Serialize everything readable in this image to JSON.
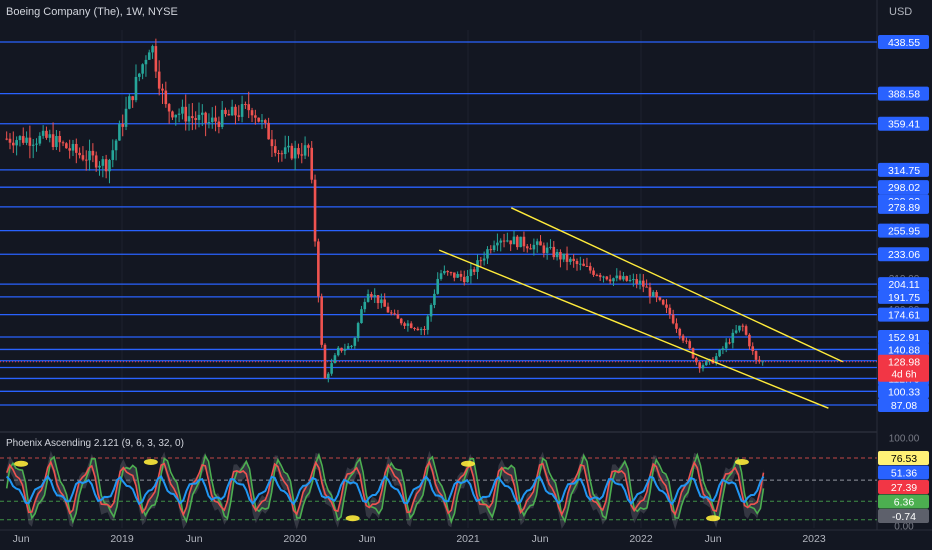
{
  "header": {
    "title": "Boeing Company (The), 1W, NYSE",
    "currency": "USD"
  },
  "oscillator": {
    "title": "Phoenix Ascending 2.121 (9, 6, 3, 32, 0)",
    "value_labels": [
      {
        "text": "76.53",
        "bg": "#fff176",
        "fg": "#000000",
        "value": 76.53
      },
      {
        "text": "51.36",
        "bg": "#2962ff",
        "fg": "#ffffff",
        "value": 51.36
      },
      {
        "text": "27.39",
        "bg": "#f23645",
        "fg": "#ffffff",
        "value": 27.39
      },
      {
        "text": "6.36",
        "bg": "#4caf50",
        "fg": "#ffffff",
        "value": 6.36
      },
      {
        "text": "-0.74",
        "bg": "#5d606b",
        "fg": "#ffffff",
        "value": -0.74
      }
    ],
    "hidden_scale_labels": [
      "100.00",
      "0.00"
    ]
  },
  "colors": {
    "background": "#131722",
    "level_line": "#2962ff",
    "level_label_bg": "#2962ff",
    "up_candle": "#26a69a",
    "down_candle": "#ef5350",
    "channel_line": "#ffeb3b",
    "last_price_label": "#f23645"
  },
  "chart_data": {
    "type": "candlestick",
    "title": "Boeing Company (The), 1W, NYSE",
    "currency": "USD",
    "x_tick_labels": [
      "Jun",
      "2019",
      "Jun",
      "2020",
      "Jun",
      "2021",
      "Jun",
      "2022",
      "Jun",
      "2023"
    ],
    "x_range": [
      "2018-05",
      "2023-03"
    ],
    "y_range": [
      83,
      445
    ],
    "horizontal_levels": [
      438.55,
      388.58,
      359.41,
      314.75,
      298.02,
      298.02,
      278.89,
      255.95,
      233.06,
      204.11,
      191.75,
      174.61,
      152.91,
      140.88,
      129.93,
      123.38,
      112.79,
      100.33,
      87.08
    ],
    "partially_hidden_axis_labels": [
      "260.00",
      "210.00",
      "180.00",
      "96.00",
      "84.00"
    ],
    "last_price": {
      "value": 128.98,
      "label": "128.98",
      "countdown": "4d 6h"
    },
    "channel_lines": [
      {
        "from": {
          "date": "2020-11",
          "price": 237
        },
        "to": {
          "date": "2023-02",
          "price": 84
        }
      },
      {
        "from": {
          "date": "2021-04",
          "price": 278
        },
        "to": {
          "date": "2023-03",
          "price": 129
        }
      }
    ],
    "candle_path_key_points": [
      {
        "date": "2018-05",
        "price": 345
      },
      {
        "date": "2018-08",
        "price": 345
      },
      {
        "date": "2018-10",
        "price": 330
      },
      {
        "date": "2018-12",
        "price": 320
      },
      {
        "date": "2019-02",
        "price": 400
      },
      {
        "date": "2019-03",
        "price": 440
      },
      {
        "date": "2019-04",
        "price": 375
      },
      {
        "date": "2019-07",
        "price": 360
      },
      {
        "date": "2019-10",
        "price": 375
      },
      {
        "date": "2019-12",
        "price": 330
      },
      {
        "date": "2020-02",
        "price": 335
      },
      {
        "date": "2020-03",
        "price": 110
      },
      {
        "date": "2020-04",
        "price": 140
      },
      {
        "date": "2020-05",
        "price": 145
      },
      {
        "date": "2020-06",
        "price": 200
      },
      {
        "date": "2020-08",
        "price": 170
      },
      {
        "date": "2020-10",
        "price": 160
      },
      {
        "date": "2020-11",
        "price": 215
      },
      {
        "date": "2021-01",
        "price": 210
      },
      {
        "date": "2021-03",
        "price": 250
      },
      {
        "date": "2021-06",
        "price": 240
      },
      {
        "date": "2021-09",
        "price": 220
      },
      {
        "date": "2021-11",
        "price": 210
      },
      {
        "date": "2022-01",
        "price": 205
      },
      {
        "date": "2022-03",
        "price": 175
      },
      {
        "date": "2022-05",
        "price": 125
      },
      {
        "date": "2022-06",
        "price": 130
      },
      {
        "date": "2022-08",
        "price": 165
      },
      {
        "date": "2022-09",
        "price": 129
      }
    ]
  }
}
